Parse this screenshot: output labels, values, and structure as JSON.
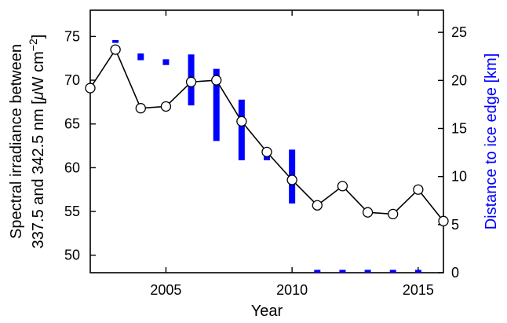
{
  "chart_data": {
    "type": "line",
    "xlabel": "Year",
    "ylabel_lines": [
      "Spectral irradiance between",
      "337.5 and 342.5 nm [μW cm⁻²]"
    ],
    "ylabel_line1": "Spectral irradiance between",
    "ylabel_line2_parts": [
      "337.5 and 342.5 nm [",
      "μ",
      "W cm",
      "−2",
      "]"
    ],
    "y2label": "Distance to ice edge [km]",
    "xlim": [
      2002,
      2016
    ],
    "ylim": [
      48,
      78
    ],
    "y2lim": [
      0,
      27.3
    ],
    "xticks": [
      2005,
      2010,
      2015
    ],
    "xtick_labels": [
      "2005",
      "2010",
      "2015"
    ],
    "yticks": [
      50,
      55,
      60,
      65,
      70,
      75
    ],
    "ytick_labels": [
      "50",
      "55",
      "60",
      "65",
      "70",
      "75"
    ],
    "y2ticks": [
      0,
      5,
      10,
      15,
      20,
      25
    ],
    "y2tick_labels": [
      "0",
      "5",
      "10",
      "15",
      "20",
      "25"
    ],
    "series": [
      {
        "axis": "left",
        "style": "line-open-circles",
        "color": "#000000",
        "x": [
          2002,
          2003,
          2004,
          2005,
          2006,
          2007,
          2008,
          2009,
          2010,
          2011,
          2012,
          2013,
          2014,
          2015,
          2016
        ],
        "y": [
          69.1,
          73.5,
          66.8,
          67.0,
          69.8,
          70.0,
          65.3,
          61.8,
          58.6,
          55.7,
          57.9,
          54.9,
          54.7,
          57.5,
          53.9
        ]
      },
      {
        "axis": "right",
        "style": "vertical-range-bars",
        "color": "#0000ff",
        "x": [
          2003,
          2004,
          2005,
          2006,
          2007,
          2008,
          2009,
          2010,
          2011,
          2012,
          2013,
          2014,
          2015
        ],
        "low": [
          23.9,
          22.1,
          21.6,
          17.4,
          13.7,
          11.7,
          11.7,
          7.2,
          0,
          0,
          0,
          0,
          0
        ],
        "high": [
          24.2,
          22.8,
          22.2,
          22.7,
          21.2,
          18.0,
          12.8,
          12.8,
          0.3,
          0.3,
          0.3,
          0.3,
          0.3
        ]
      }
    ],
    "grid": false,
    "legend": "none"
  }
}
